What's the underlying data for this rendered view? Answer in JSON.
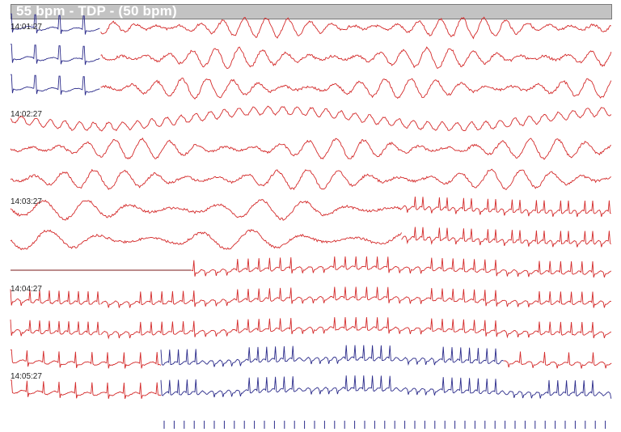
{
  "title": "55 bpm - TDP - (50 bpm)",
  "colors": {
    "background": "#ffffff",
    "title_bar": "#c3c3c3",
    "paced_trace": "#d42a2a",
    "sinus_trace": "#2a2a8a",
    "baseline_trace": "#7a1a1a",
    "pacing_marker": "#2a2a8a"
  },
  "chart_data": {
    "type": "line",
    "title": "55 bpm - TDP - (50 bpm)",
    "time_labels": [
      "14:01:27",
      "14:02:27",
      "14:03:27",
      "14:04:27",
      "14:05:27"
    ],
    "grid": false,
    "legend": "none",
    "strips": [
      {
        "row": 0,
        "segments": [
          {
            "from": 0,
            "to": 0.15,
            "rhythm": "sinus",
            "rate": 20
          },
          {
            "from": 0.15,
            "to": 1,
            "rhythm": "polymorphic",
            "rate": 140
          }
        ]
      },
      {
        "row": 1,
        "segments": [
          {
            "from": 0,
            "to": 0.15,
            "rhythm": "sinus",
            "rate": 20
          },
          {
            "from": 0.15,
            "to": 1,
            "rhythm": "polymorphic",
            "rate": 130
          }
        ]
      },
      {
        "row": 2,
        "segments": [
          {
            "from": 0,
            "to": 0.15,
            "rhythm": "sinus",
            "rate": 20
          },
          {
            "from": 0.15,
            "to": 1,
            "rhythm": "polymorphic",
            "rate": 120
          }
        ]
      },
      {
        "row": 3,
        "segments": [
          {
            "from": 0,
            "to": 1,
            "rhythm": "wandering",
            "rate": 60
          }
        ]
      },
      {
        "row": 4,
        "segments": [
          {
            "from": 0,
            "to": 1,
            "rhythm": "polymorphic",
            "rate": 110
          }
        ]
      },
      {
        "row": 5,
        "segments": [
          {
            "from": 0,
            "to": 1,
            "rhythm": "polymorphic",
            "rate": 100
          }
        ]
      },
      {
        "row": 6,
        "segments": [
          {
            "from": 0,
            "to": 0.65,
            "rhythm": "polymorphic",
            "rate": 70
          },
          {
            "from": 0.65,
            "to": 1,
            "rhythm": "paced",
            "rate": 60
          }
        ]
      },
      {
        "row": 7,
        "segments": [
          {
            "from": 0,
            "to": 0.65,
            "rhythm": "polymorphic",
            "rate": 60
          },
          {
            "from": 0.65,
            "to": 1,
            "rhythm": "paced",
            "rate": 60
          }
        ]
      },
      {
        "row": 8,
        "segments": [
          {
            "from": 0,
            "to": 0.3,
            "rhythm": "flat",
            "rate": 0
          },
          {
            "from": 0.3,
            "to": 1,
            "rhythm": "paced",
            "rate": 45
          }
        ]
      },
      {
        "row": 9,
        "segments": [
          {
            "from": 0,
            "to": 0.15,
            "rhythm": "paced",
            "rate": 50
          },
          {
            "from": 0.15,
            "to": 1,
            "rhythm": "paced",
            "rate": 45
          }
        ]
      },
      {
        "row": 10,
        "segments": [
          {
            "from": 0,
            "to": 0.15,
            "rhythm": "paced",
            "rate": 50
          },
          {
            "from": 0.15,
            "to": 1,
            "rhythm": "paced",
            "rate": 45
          }
        ]
      },
      {
        "row": 11,
        "segments": [
          {
            "from": 0,
            "to": 0.25,
            "rhythm": "paced",
            "rate": 30
          },
          {
            "from": 0.25,
            "to": 0.82,
            "rhythm": "sinus",
            "rate": 55
          },
          {
            "from": 0.82,
            "to": 1,
            "rhythm": "paced",
            "rate": 40
          }
        ]
      },
      {
        "row": 12,
        "segments": [
          {
            "from": 0,
            "to": 0.25,
            "rhythm": "paced",
            "rate": 30
          },
          {
            "from": 0.25,
            "to": 1,
            "rhythm": "sinus",
            "rate": 55
          }
        ]
      }
    ]
  }
}
